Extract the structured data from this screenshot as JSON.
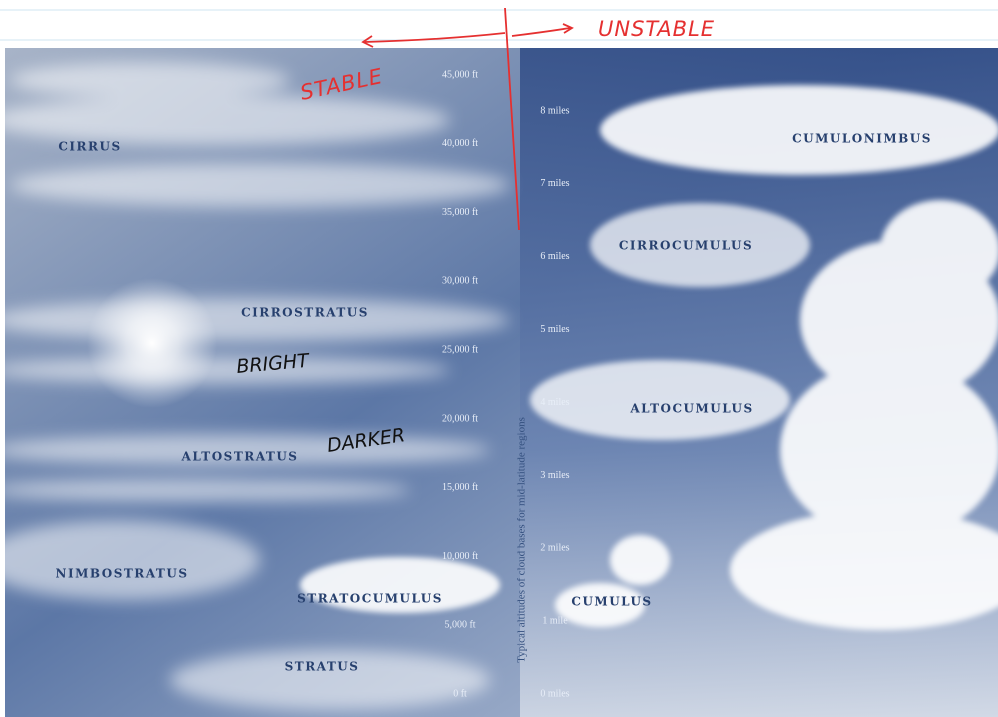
{
  "clouds": [
    {
      "label": "CIRRUS"
    },
    {
      "label": "CUMULONIMBUS"
    },
    {
      "label": "CIRROCUMULUS"
    },
    {
      "label": "CIRROSTRATUS"
    },
    {
      "label": "ALTOCUMULUS"
    },
    {
      "label": "ALTOSTRATUS"
    },
    {
      "label": "NIMBOSTRATUS"
    },
    {
      "label": "STRATOCUMULUS"
    },
    {
      "label": "CUMULUS"
    },
    {
      "label": "STRATUS"
    }
  ],
  "altitude_ft": [
    "45,000 ft",
    "40,000 ft",
    "35,000 ft",
    "30,000 ft",
    "25,000 ft",
    "20,000 ft",
    "15,000 ft",
    "10,000 ft",
    "5,000 ft",
    "0 ft"
  ],
  "altitude_miles": [
    "8 miles",
    "7 miles",
    "6 miles",
    "5 miles",
    "4 miles",
    "3 miles",
    "2 miles",
    "1 mile",
    "0 miles"
  ],
  "axis_label": "Typical altitudes of cloud bases for mid-latitude regions",
  "annotations": {
    "unstable": "UNSTABLE",
    "stable": "STABLE",
    "bright": "BRIGHT",
    "darker": "DARKER"
  }
}
